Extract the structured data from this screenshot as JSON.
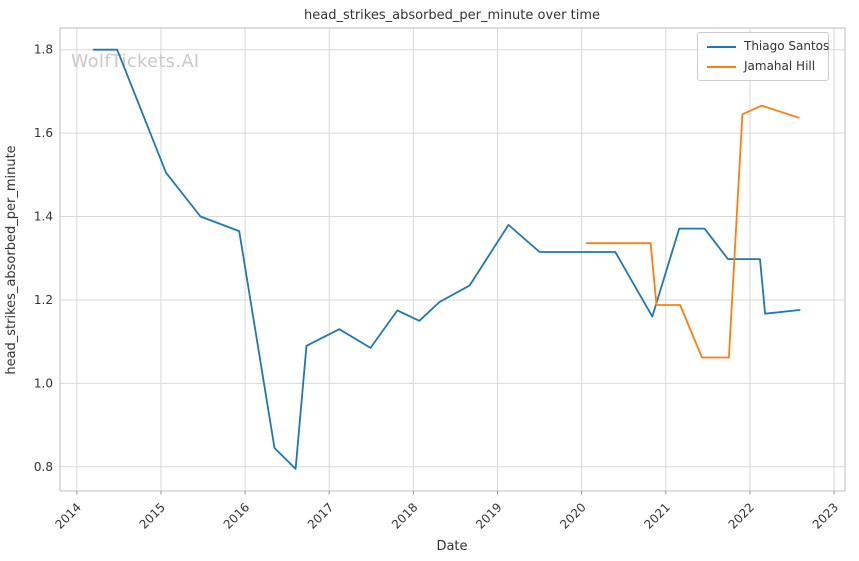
{
  "chart": {
    "watermark": "WolfTickets.AI"
  },
  "colors": {
    "series_blue": "#1f77b4",
    "series_orange": "#ff7f0e",
    "grid": "#d9d9d9",
    "spine": "#bfbfbf",
    "text": "#333333",
    "watermark": "#c9c9c9",
    "legend_border": "#cccccc",
    "background": "#ffffff"
  },
  "chart_data": {
    "type": "line",
    "title": "head_strikes_absorbed_per_minute over time",
    "xlabel": "Date",
    "ylabel": "head_strikes_absorbed_per_minute",
    "xlim": [
      2013.8,
      2023.13
    ],
    "ylim": [
      0.742,
      1.852
    ],
    "grid": true,
    "legend_position": "upper right",
    "x_tick_values": [
      2014,
      2015,
      2016,
      2017,
      2018,
      2019,
      2020,
      2021,
      2022,
      2023
    ],
    "x_tick_labels": [
      "2014",
      "2015",
      "2016",
      "2017",
      "2018",
      "2019",
      "2020",
      "2021",
      "2022",
      "2023"
    ],
    "y_tick_values": [
      0.8,
      1.0,
      1.2,
      1.4,
      1.6,
      1.8
    ],
    "y_tick_labels": [
      "0.8",
      "1.0",
      "1.2",
      "1.4",
      "1.6",
      "1.8"
    ],
    "series": [
      {
        "name": "Thiago Santos",
        "color": "#1f77b4",
        "points": [
          [
            2014.2,
            1.8
          ],
          [
            2014.48,
            1.8
          ],
          [
            2015.06,
            1.505
          ],
          [
            2015.47,
            1.4
          ],
          [
            2015.93,
            1.365
          ],
          [
            2016.35,
            0.845
          ],
          [
            2016.6,
            0.795
          ],
          [
            2016.73,
            1.09
          ],
          [
            2017.12,
            1.13
          ],
          [
            2017.49,
            1.085
          ],
          [
            2017.81,
            1.175
          ],
          [
            2018.07,
            1.15
          ],
          [
            2018.31,
            1.195
          ],
          [
            2018.67,
            1.235
          ],
          [
            2019.13,
            1.38
          ],
          [
            2019.5,
            1.315
          ],
          [
            2020.4,
            1.315
          ],
          [
            2020.84,
            1.16
          ],
          [
            2021.16,
            1.371
          ],
          [
            2021.46,
            1.371
          ],
          [
            2021.74,
            1.298
          ],
          [
            2022.12,
            1.298
          ],
          [
            2022.18,
            1.167
          ],
          [
            2022.59,
            1.176
          ]
        ]
      },
      {
        "name": "Jamahal Hill",
        "color": "#ff7f0e",
        "points": [
          [
            2020.06,
            1.336
          ],
          [
            2020.82,
            1.336
          ],
          [
            2020.89,
            1.188
          ],
          [
            2021.17,
            1.188
          ],
          [
            2021.43,
            1.062
          ],
          [
            2021.75,
            1.062
          ],
          [
            2021.91,
            1.645
          ],
          [
            2022.14,
            1.666
          ],
          [
            2022.58,
            1.637
          ]
        ]
      }
    ]
  }
}
